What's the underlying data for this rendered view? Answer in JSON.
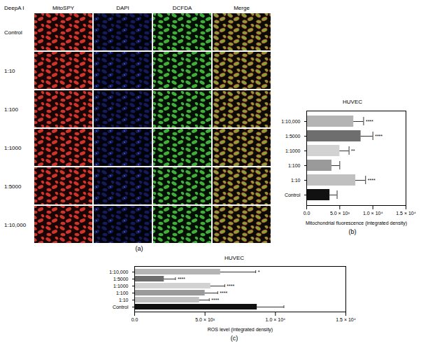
{
  "image_panel": {
    "panel": "(a)",
    "row_header": "DeepA I",
    "columns": [
      "MitoSPY",
      "DAPI",
      "DCFDA",
      "Merge"
    ],
    "rows": [
      "Control",
      "1:10",
      "1:100",
      "1:1000",
      "1:5000",
      "1:10,000"
    ]
  },
  "chart_data": [
    {
      "type": "bar",
      "orientation": "horizontal",
      "panel": "(b)",
      "title": "HUVEC",
      "xlabel": "Mitochondrial fluorescence (integrated density)",
      "categories": [
        "1:10,000",
        "1:5000",
        "1:1000",
        "1:100",
        "1:10",
        "Control"
      ],
      "values": [
        7100,
        8200,
        5000,
        3800,
        7400,
        3500
      ],
      "errors": [
        1500,
        1800,
        1400,
        1200,
        1500,
        1100
      ],
      "significance": [
        "****",
        "****",
        "**",
        null,
        "****",
        null
      ],
      "colors": [
        "#b4b4b4",
        "#6e6e6e",
        "#d2d2d2",
        "#9a9a9a",
        "#c0c0c0",
        "#111111"
      ],
      "xlim": [
        0,
        15000
      ],
      "xticks": [
        {
          "value": 0,
          "label": "0.0"
        },
        {
          "value": 5000,
          "label": "5.0 × 10³"
        },
        {
          "value": 10000,
          "label": "1.0 × 10⁴"
        },
        {
          "value": 15000,
          "label": "1.5 × 10⁴"
        }
      ]
    },
    {
      "type": "bar",
      "orientation": "horizontal",
      "panel": "(c)",
      "title": "HUVEC",
      "xlabel": "ROS level (integrated density)",
      "categories": [
        "1:10,000",
        "1:5000",
        "1:1000",
        "1:100",
        "1:10",
        "Control"
      ],
      "values": [
        6100,
        2100,
        5400,
        5000,
        4600,
        8700
      ],
      "errors": [
        2500,
        800,
        1000,
        900,
        700,
        1900
      ],
      "significance": [
        "*",
        "****",
        "****",
        "****",
        "****",
        null
      ],
      "colors": [
        "#b4b4b4",
        "#6e6e6e",
        "#d2d2d2",
        "#9a9a9a",
        "#c0c0c0",
        "#111111"
      ],
      "xlim": [
        0,
        15000
      ],
      "xticks": [
        {
          "value": 0,
          "label": "0.0"
        },
        {
          "value": 5000,
          "label": "5.0 × 10³"
        },
        {
          "value": 10000,
          "label": "1.0 × 10⁴"
        },
        {
          "value": 15000,
          "label": "1.5 × 10⁴"
        }
      ]
    }
  ]
}
